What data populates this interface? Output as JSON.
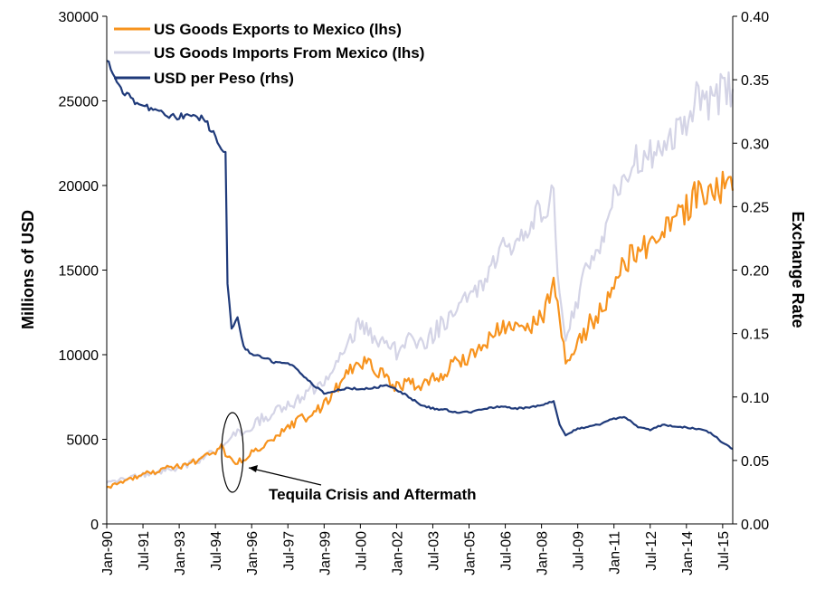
{
  "colors": {
    "exports": "#F7931E",
    "imports": "#D4D4E6",
    "peso": "#1F3A7A",
    "axis": "#000000"
  },
  "chart_data": {
    "type": "line",
    "title": "",
    "xlabel": "",
    "ylabel_left": "Millions of USD",
    "ylabel_right": "Exchange Rate",
    "ylim_left": [
      0,
      30000
    ],
    "ylim_right": [
      0.0,
      0.4
    ],
    "yticks_left": [
      "0",
      "5000",
      "10000",
      "15000",
      "20000",
      "25000",
      "30000"
    ],
    "yticks_right": [
      "0.00",
      "0.05",
      "0.10",
      "0.15",
      "0.20",
      "0.25",
      "0.30",
      "0.35",
      "0.40"
    ],
    "xlim": [
      "1990-01",
      "2015-12"
    ],
    "x_tick_labels": [
      "Jan-90",
      "Jul-91",
      "Jan-93",
      "Jul-94",
      "Jan-96",
      "Jul-97",
      "Jan-99",
      "Jul-00",
      "Jan-02",
      "Jul-03",
      "Jan-05",
      "Jul-06",
      "Jan-08",
      "Jul-09",
      "Jan-11",
      "Jul-12",
      "Jan-14",
      "Jul-15"
    ],
    "x_tick_dates": [
      "1990-01",
      "1991-07",
      "1993-01",
      "1994-07",
      "1996-01",
      "1997-07",
      "1999-01",
      "2000-07",
      "2002-01",
      "2003-07",
      "2005-01",
      "2006-07",
      "2008-01",
      "2009-07",
      "2011-01",
      "2012-07",
      "2014-01",
      "2015-07"
    ],
    "grid": false,
    "legend_position": "top-left",
    "annotation": "Tequila Crisis and Aftermath",
    "series": [
      {
        "name": "US Goods Exports to Mexico (lhs)",
        "axis": "left",
        "x": [
          "1990-01",
          "1990-07",
          "1991-01",
          "1991-07",
          "1992-01",
          "1992-07",
          "1993-01",
          "1993-07",
          "1994-01",
          "1994-07",
          "1994-10",
          "1995-01",
          "1995-04",
          "1995-07",
          "1995-10",
          "1996-01",
          "1996-07",
          "1997-01",
          "1997-07",
          "1998-01",
          "1998-07",
          "1999-01",
          "1999-07",
          "2000-01",
          "2000-07",
          "2001-01",
          "2001-07",
          "2002-01",
          "2002-07",
          "2003-01",
          "2003-07",
          "2004-01",
          "2004-07",
          "2005-01",
          "2005-07",
          "2006-01",
          "2006-07",
          "2007-01",
          "2007-07",
          "2008-01",
          "2008-07",
          "2008-10",
          "2009-01",
          "2009-04",
          "2009-07",
          "2010-01",
          "2010-07",
          "2011-01",
          "2011-07",
          "2012-01",
          "2012-07",
          "2013-01",
          "2013-07",
          "2014-01",
          "2014-07",
          "2015-01",
          "2015-07",
          "2015-12"
        ],
        "values": [
          2100,
          2400,
          2700,
          2900,
          3100,
          3300,
          3400,
          3600,
          3900,
          4300,
          4500,
          4000,
          3600,
          3700,
          3900,
          4200,
          4700,
          5100,
          5600,
          6200,
          6500,
          7000,
          8000,
          8900,
          9600,
          9200,
          8700,
          8100,
          8400,
          8100,
          8500,
          9000,
          9600,
          9900,
          10500,
          11300,
          11600,
          11500,
          11800,
          12100,
          14400,
          12000,
          9800,
          9900,
          10600,
          11800,
          12600,
          14000,
          15500,
          16200,
          16600,
          17200,
          18000,
          18600,
          19600,
          19800,
          19900,
          19700
        ]
      },
      {
        "name": "US Goods Imports From Mexico (lhs)",
        "axis": "left",
        "x": [
          "1990-01",
          "1990-07",
          "1991-01",
          "1991-07",
          "1992-01",
          "1992-07",
          "1993-01",
          "1993-07",
          "1994-01",
          "1994-07",
          "1995-01",
          "1995-07",
          "1996-01",
          "1996-07",
          "1997-01",
          "1997-07",
          "1998-01",
          "1998-07",
          "1999-01",
          "1999-07",
          "2000-01",
          "2000-07",
          "2001-01",
          "2001-07",
          "2002-01",
          "2002-07",
          "2003-01",
          "2003-07",
          "2004-01",
          "2004-07",
          "2005-01",
          "2005-07",
          "2006-01",
          "2006-07",
          "2007-01",
          "2007-07",
          "2008-01",
          "2008-07",
          "2008-10",
          "2009-01",
          "2009-07",
          "2010-01",
          "2010-07",
          "2011-01",
          "2011-07",
          "2012-01",
          "2012-07",
          "2013-01",
          "2013-07",
          "2014-01",
          "2014-07",
          "2015-01",
          "2015-07",
          "2015-12"
        ],
        "values": [
          2400,
          2600,
          2800,
          2900,
          3000,
          3200,
          3300,
          3600,
          3900,
          4400,
          5000,
          5400,
          5800,
          6300,
          6600,
          7000,
          7400,
          8000,
          8500,
          9500,
          10800,
          11900,
          11000,
          10600,
          10200,
          10800,
          10500,
          11200,
          12000,
          12600,
          13400,
          14000,
          15400,
          16400,
          16500,
          17500,
          18600,
          19300,
          13000,
          11200,
          13200,
          15500,
          17000,
          19500,
          20500,
          21500,
          21800,
          22300,
          23000,
          24000,
          25100,
          25000,
          25500,
          25700
        ]
      },
      {
        "name": "USD per Peso (rhs)",
        "axis": "right",
        "x": [
          "1990-01",
          "1990-04",
          "1990-07",
          "1991-01",
          "1991-07",
          "1992-01",
          "1992-07",
          "1993-01",
          "1993-07",
          "1994-01",
          "1994-07",
          "1994-10",
          "1994-12",
          "1995-01",
          "1995-03",
          "1995-06",
          "1995-09",
          "1996-01",
          "1996-07",
          "1997-01",
          "1997-07",
          "1998-01",
          "1998-07",
          "1999-01",
          "1999-07",
          "2000-01",
          "2000-07",
          "2001-01",
          "2001-07",
          "2002-01",
          "2002-07",
          "2003-01",
          "2003-07",
          "2004-01",
          "2004-07",
          "2005-01",
          "2005-07",
          "2006-01",
          "2006-07",
          "2007-01",
          "2007-07",
          "2008-01",
          "2008-07",
          "2008-10",
          "2009-01",
          "2009-07",
          "2010-01",
          "2010-07",
          "2011-01",
          "2011-07",
          "2012-01",
          "2012-07",
          "2013-01",
          "2013-07",
          "2014-01",
          "2014-07",
          "2015-01",
          "2015-07",
          "2015-12"
        ],
        "values": [
          0.365,
          0.355,
          0.345,
          0.335,
          0.33,
          0.325,
          0.322,
          0.321,
          0.321,
          0.32,
          0.305,
          0.296,
          0.292,
          0.19,
          0.155,
          0.162,
          0.14,
          0.133,
          0.131,
          0.127,
          0.127,
          0.12,
          0.11,
          0.103,
          0.105,
          0.107,
          0.106,
          0.107,
          0.109,
          0.106,
          0.1,
          0.094,
          0.091,
          0.09,
          0.088,
          0.088,
          0.09,
          0.092,
          0.092,
          0.091,
          0.092,
          0.093,
          0.097,
          0.078,
          0.07,
          0.075,
          0.077,
          0.079,
          0.083,
          0.084,
          0.076,
          0.074,
          0.078,
          0.077,
          0.076,
          0.075,
          0.072,
          0.064,
          0.059
        ]
      }
    ]
  }
}
